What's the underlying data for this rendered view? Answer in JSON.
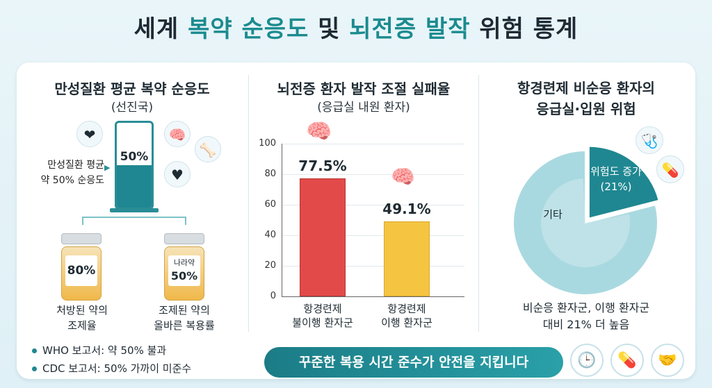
{
  "title": {
    "part1": "세계 ",
    "part2": "복약 순응도",
    "part3": " 및 ",
    "part4": "뇌전증 발작",
    "part5": " 위험 통계"
  },
  "panel1": {
    "title": "만성질환 평균 복약 순응도",
    "subtitle": "(선진국)",
    "side_label_1": "만성질환 평균",
    "side_label_2": "약 50% 순응도",
    "icons": [
      "heart-organ-icon",
      "brain-icon",
      "joint-icon",
      "heart-rate-icon"
    ],
    "bottle1": {
      "value": "80%",
      "caption1": "처방된 약의",
      "caption2": "조제율"
    },
    "bottle2": {
      "tag": "나라약",
      "value": "50%",
      "caption1": "조제된 약의",
      "caption2": "올바른 복용률"
    },
    "bullets": [
      "WHO 보고서: 약 50% 불과",
      "CDC 보고서: 50% 가까이 미준수"
    ]
  },
  "panel2": {
    "title": "뇌전증 환자 발작 조절 실패율",
    "subtitle": "(응급실 내원 환자)"
  },
  "panel3": {
    "title1": "항경련제 비순응 환자의",
    "title2": "응급실·입원 위험",
    "note1": "비순응 환자군, 이행 환자군",
    "note2": "대비 21% 더 높음"
  },
  "footer": {
    "banner": "꾸준한 복용 시간 준수가 안전을 지킵니다",
    "icons": [
      "clock-icon",
      "pill-icon",
      "handshake-icon"
    ]
  },
  "colors": {
    "teal": "#1f8791",
    "red": "#e24a4a",
    "yellow": "#f5c542",
    "pie_light": "#a9d9e0",
    "pie_pale": "#cfe9ee"
  },
  "chart_data": [
    {
      "type": "bar",
      "title": "만성질환 평균 복약 순응도",
      "categories": [
        "만성질환 평균"
      ],
      "values": [
        50
      ],
      "labels": [
        "50%"
      ]
    },
    {
      "type": "bar",
      "title": "뇌전증 환자 발작 조절 실패율",
      "categories": [
        "항경련제 불이행 환자군",
        "항경련제 이행 환자군"
      ],
      "category_lines": [
        [
          "항경련제",
          "불이행 환자군"
        ],
        [
          "항경련제",
          "이행 환자군"
        ]
      ],
      "values": [
        77.5,
        49.1
      ],
      "labels": [
        "77.5%",
        "49.1%"
      ],
      "colors": [
        "#e24a4a",
        "#f5c542"
      ],
      "ylim": [
        0,
        100
      ],
      "yticks": [
        0,
        20,
        40,
        60,
        80,
        100
      ],
      "grid": true
    },
    {
      "type": "pie",
      "title": "항경련제 비순응 환자의 응급실·입원 위험",
      "slices": [
        {
          "label": "위험도 증가",
          "value_label": "(21%)",
          "value": 21,
          "color": "#1f8791"
        },
        {
          "label": "기타",
          "value": 79,
          "color": "#a9d9e0"
        }
      ]
    }
  ]
}
